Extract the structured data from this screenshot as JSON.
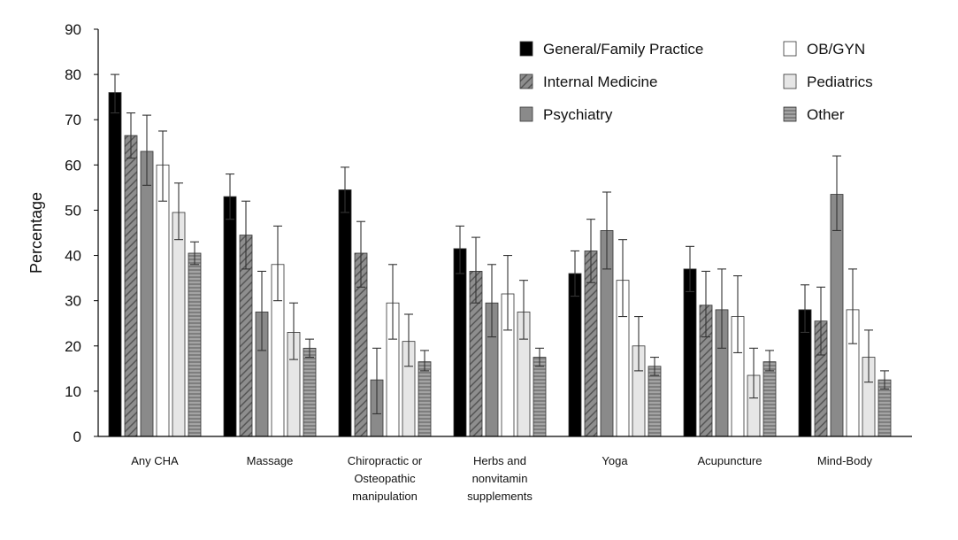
{
  "chart_data": {
    "type": "bar",
    "ylabel": "Percentage",
    "xlabel": "",
    "ylim": [
      0,
      90
    ],
    "yticks": [
      0,
      10,
      20,
      30,
      40,
      50,
      60,
      70,
      80,
      90
    ],
    "grid": false,
    "legend_position": "top-right",
    "categories": [
      [
        "Any CHA"
      ],
      [
        "Massage"
      ],
      [
        "Chiropractic or",
        "Osteopathic",
        "manipulation"
      ],
      [
        "Herbs and",
        "nonvitamin",
        "supplements"
      ],
      [
        "Yoga"
      ],
      [
        "Acupuncture"
      ],
      [
        "Mind-Body"
      ]
    ],
    "series": [
      {
        "name": "General/Family Practice",
        "fill": "solid-black",
        "values": [
          76,
          53,
          54.5,
          41.5,
          36,
          37,
          28
        ],
        "err_low": [
          71.5,
          48,
          49.5,
          36,
          31,
          32,
          23
        ],
        "err_high": [
          80,
          58,
          59.5,
          46.5,
          41,
          42,
          33.5
        ]
      },
      {
        "name": "Internal Medicine",
        "fill": "diagonal-hatch",
        "values": [
          66.5,
          44.5,
          40.5,
          36.5,
          41,
          29,
          25.5
        ],
        "err_low": [
          61.5,
          37,
          33,
          29.5,
          34,
          22,
          18
        ],
        "err_high": [
          71.5,
          52,
          47.5,
          44,
          48,
          36.5,
          33
        ]
      },
      {
        "name": "Psychiatry",
        "fill": "gray",
        "values": [
          63,
          27.5,
          12.5,
          29.5,
          45.5,
          28,
          53.5
        ],
        "err_low": [
          55.5,
          19,
          5,
          22,
          37,
          19.5,
          45.5
        ],
        "err_high": [
          71,
          36.5,
          19.5,
          38,
          54,
          37,
          62
        ]
      },
      {
        "name": "OB/GYN",
        "fill": "white",
        "values": [
          60,
          38,
          29.5,
          31.5,
          34.5,
          26.5,
          28
        ],
        "err_low": [
          52,
          30,
          21.5,
          23.5,
          26.5,
          18.5,
          20.5
        ],
        "err_high": [
          67.5,
          46.5,
          38,
          40,
          43.5,
          35.5,
          37
        ]
      },
      {
        "name": "Pediatrics",
        "fill": "light-gray",
        "values": [
          49.5,
          23,
          21,
          27.5,
          20,
          13.5,
          17.5
        ],
        "err_low": [
          43.5,
          17,
          15.5,
          21.5,
          14.5,
          8.5,
          12
        ],
        "err_high": [
          56,
          29.5,
          27,
          34.5,
          26.5,
          19.5,
          23.5
        ]
      },
      {
        "name": "Other",
        "fill": "horizontal-stripes",
        "values": [
          40.5,
          19.5,
          16.5,
          17.5,
          15.5,
          16.5,
          12.5
        ],
        "err_low": [
          38,
          17.5,
          14.5,
          15.5,
          13.5,
          14.5,
          10.5
        ],
        "err_high": [
          43,
          21.5,
          19,
          19.5,
          17.5,
          19,
          14.5
        ]
      }
    ]
  }
}
